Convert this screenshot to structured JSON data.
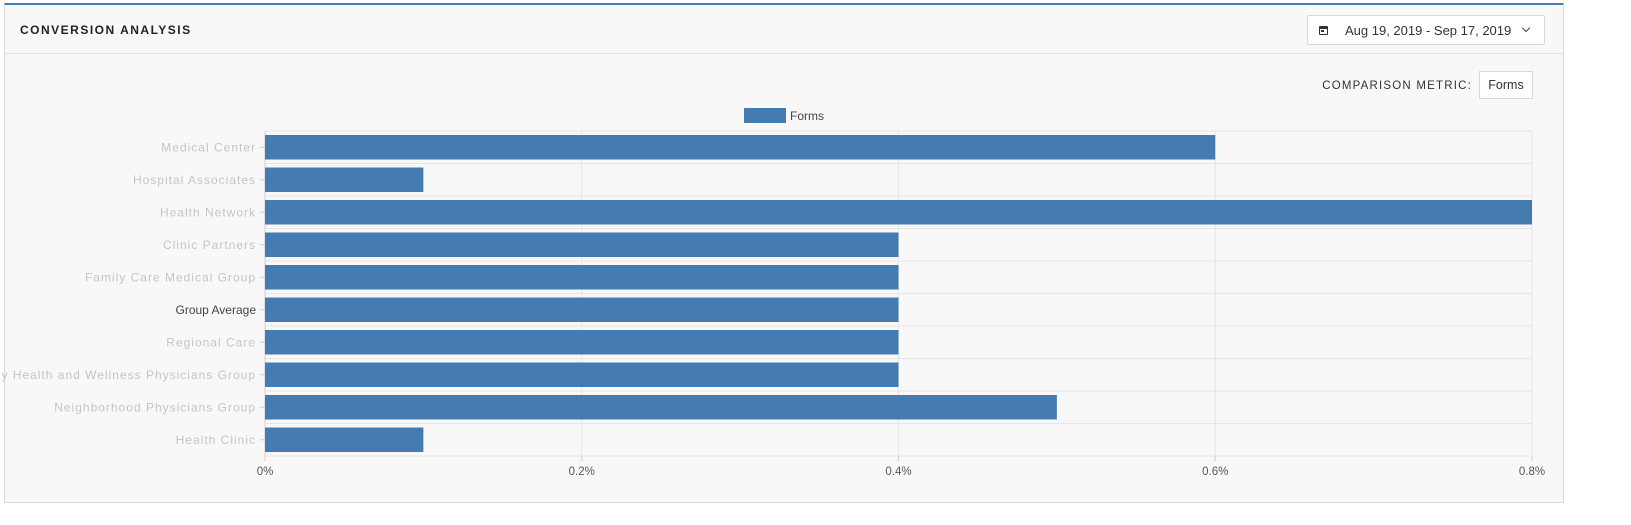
{
  "panel": {
    "title": "CONVERSION ANALYSIS",
    "date_range": "Aug 19, 2019 - Sep 17, 2019",
    "comparison_metric_label": "COMPARISON METRIC:",
    "comparison_metric_value": "Forms"
  },
  "icons": {
    "date_picker": "calendar-icon",
    "dropdown": "chevron-down-icon"
  },
  "colors": {
    "accent": "#4a7ab5",
    "bar": "#447bb1",
    "grid": "#e6e6e6"
  },
  "chart_data": {
    "type": "bar",
    "orientation": "horizontal",
    "categories": [
      "Medical Center",
      "Hospital Associates",
      "Health Network",
      "Clinic Partners",
      "Family Care Medical Group",
      "Group Average",
      "Regional Care",
      "Community Health and Wellness Physicians Group",
      "Neighborhood Physicians Group",
      "Health Clinic"
    ],
    "series": [
      {
        "name": "Forms",
        "values": [
          0.6,
          0.1,
          0.8,
          0.4,
          0.4,
          0.4,
          0.4,
          0.4,
          0.5,
          0.1
        ]
      }
    ],
    "xlim": [
      0,
      0.8
    ],
    "xticks": [
      "0%",
      "0.2%",
      "0.4%",
      "0.6%",
      "0.8%"
    ],
    "xtick_values": [
      0,
      0.2,
      0.4,
      0.6,
      0.8
    ],
    "legend": "top-center",
    "grid": true,
    "obscured_categories": [
      true,
      true,
      true,
      true,
      true,
      false,
      true,
      true,
      true,
      true
    ]
  }
}
